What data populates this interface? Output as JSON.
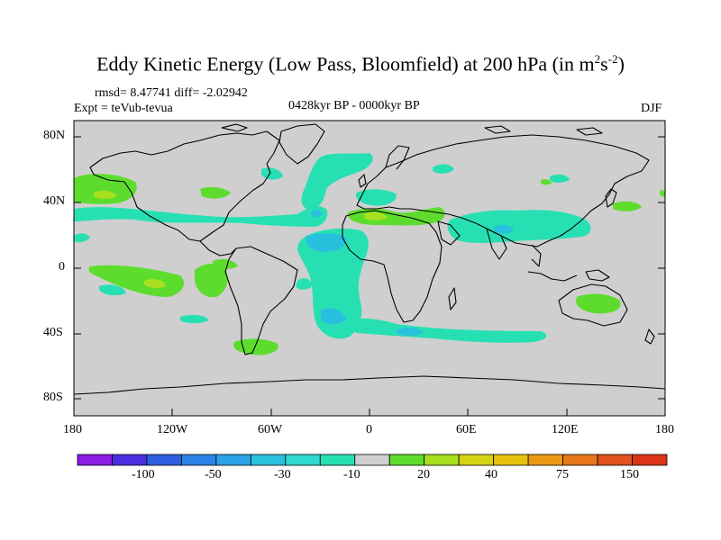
{
  "title": {
    "main": "Eddy Kinetic Energy (Low Pass, Bloomfield) at 200 hPa (in m",
    "sup1": "2",
    "mid": "s",
    "sup2": "-2",
    "end": ")"
  },
  "stats": "rmsd= 8.47741 diff= -2.02942",
  "experiment": "Expt = teVub-tevua",
  "period": "0428kyr BP - 0000kyr BP",
  "season": "DJF",
  "lat_ticks": [
    "80N",
    "40N",
    "0",
    "40S",
    "80S"
  ],
  "lon_ticks": [
    "180",
    "120W",
    "60W",
    "0",
    "60E",
    "120E",
    "180"
  ],
  "colorbar": {
    "colors": [
      "#8a1ce6",
      "#4a2ee0",
      "#2f5fe0",
      "#2b84e6",
      "#2ba3e6",
      "#29c0dd",
      "#2fd8cc",
      "#26e0b4",
      "#cfcfcf",
      "#5edc2e",
      "#a6e01e",
      "#d4d414",
      "#e6c20e",
      "#ea9a12",
      "#e8761a",
      "#e2521e",
      "#dc3418"
    ],
    "labels": [
      "-100",
      "-50",
      "-30",
      "-10",
      "20",
      "40",
      "75",
      "150"
    ]
  },
  "colors": {
    "land_ocean_bg": "#cfcfcf",
    "pos_low": "#5edc2e",
    "pos_mid": "#a6e01e",
    "pos_high": "#d4d414",
    "neg_low": "#26e0b4",
    "neg_mid": "#29c0dd",
    "neg_high": "#2ba3e6",
    "coast": "#000000"
  }
}
